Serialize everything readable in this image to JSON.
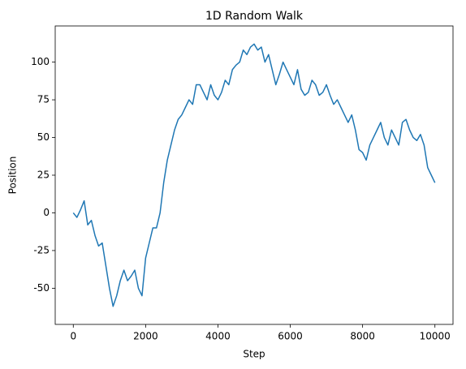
{
  "chart_data": {
    "type": "line",
    "title": "1D Random Walk",
    "x_label": "Step",
    "y_label": "Position",
    "x": [
      0,
      100,
      200,
      300,
      400,
      500,
      600,
      700,
      800,
      900,
      1000,
      1100,
      1200,
      1300,
      1400,
      1500,
      1600,
      1700,
      1800,
      1900,
      2000,
      2100,
      2200,
      2300,
      2400,
      2500,
      2600,
      2700,
      2800,
      2900,
      3000,
      3100,
      3200,
      3300,
      3400,
      3500,
      3600,
      3700,
      3800,
      3900,
      4000,
      4100,
      4200,
      4300,
      4400,
      4500,
      4600,
      4700,
      4800,
      4900,
      5000,
      5100,
      5200,
      5300,
      5400,
      5500,
      5600,
      5700,
      5800,
      5900,
      6000,
      6100,
      6200,
      6300,
      6400,
      6500,
      6600,
      6700,
      6800,
      6900,
      7000,
      7100,
      7200,
      7300,
      7400,
      7500,
      7600,
      7700,
      7800,
      7900,
      8000,
      8100,
      8200,
      8300,
      8400,
      8500,
      8600,
      8700,
      8800,
      8900,
      9000,
      9100,
      9200,
      9300,
      9400,
      9500,
      9600,
      9700,
      9800,
      9900,
      10000
    ],
    "series": [
      {
        "name": "Position",
        "color": "#1f77b4",
        "values": [
          0,
          -3,
          2,
          8,
          -8,
          -5,
          -15,
          -22,
          -20,
          -35,
          -50,
          -62,
          -55,
          -45,
          -38,
          -45,
          -42,
          -38,
          -50,
          -55,
          -30,
          -20,
          -10,
          -10,
          0,
          20,
          35,
          45,
          55,
          62,
          65,
          70,
          75,
          72,
          85,
          85,
          80,
          75,
          85,
          78,
          75,
          80,
          88,
          85,
          95,
          98,
          100,
          108,
          105,
          110,
          112,
          108,
          110,
          100,
          105,
          95,
          85,
          92,
          100,
          95,
          90,
          85,
          95,
          82,
          78,
          80,
          88,
          85,
          78,
          80,
          85,
          78,
          72,
          75,
          70,
          65,
          60,
          65,
          55,
          42,
          40,
          35,
          45,
          50,
          55,
          60,
          50,
          45,
          55,
          50,
          45,
          60,
          62,
          55,
          50,
          48,
          52,
          45,
          30,
          25,
          20
        ]
      }
    ],
    "xlim": [
      -500,
      10500
    ],
    "ylim": [
      -74,
      124
    ],
    "xticks": [
      0,
      2000,
      4000,
      6000,
      8000,
      10000
    ],
    "yticks": [
      -50,
      -25,
      0,
      25,
      50,
      75,
      100
    ],
    "grid": false
  }
}
